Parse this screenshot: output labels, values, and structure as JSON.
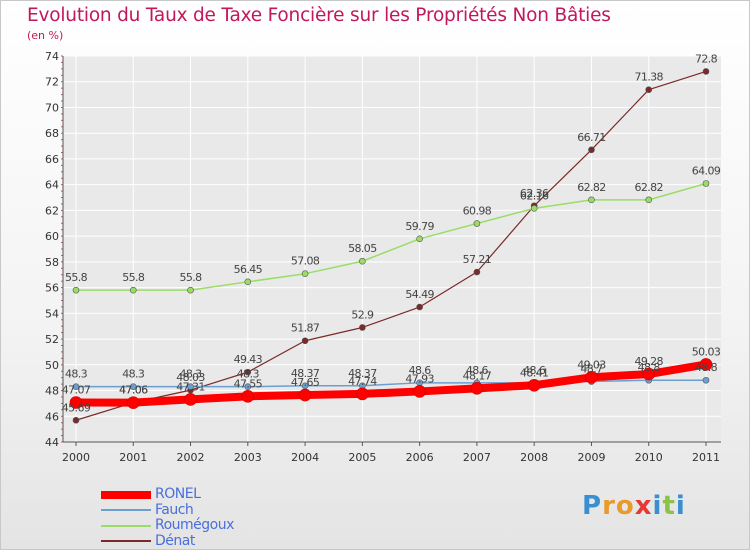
{
  "header": {
    "title": "Evolution du Taux de Taxe Foncière sur les Propriétés Non Bâties",
    "unit": "(en %)"
  },
  "colors": {
    "title": "#c2185b",
    "grid": "#ffffff",
    "axis": "#555555",
    "legend_text": "#4a6fd9"
  },
  "logo": {
    "letters": [
      "P",
      "r",
      "o",
      "x",
      "i",
      "t",
      "i"
    ],
    "colors": [
      "#3a8fd0",
      "#e89a2a",
      "#e89a2a",
      "#e53935",
      "#3a8fd0",
      "#8bc34a",
      "#3a8fd0"
    ]
  },
  "chart_data": {
    "type": "line",
    "x": [
      "2000",
      "2001",
      "2002",
      "2003",
      "2004",
      "2005",
      "2006",
      "2007",
      "2008",
      "2009",
      "2010",
      "2011"
    ],
    "ylim": [
      44,
      74
    ],
    "yticks": [
      44,
      46,
      48,
      50,
      52,
      54,
      56,
      58,
      60,
      62,
      64,
      66,
      68,
      70,
      72,
      74
    ],
    "grid": true,
    "legend_position": "bottom-left",
    "series": [
      {
        "name": "RONEL",
        "color": "#ff0000",
        "width": 8,
        "marker_r": 6,
        "values": [
          47.07,
          47.06,
          47.31,
          47.55,
          47.65,
          47.74,
          47.93,
          48.17,
          48.41,
          49.03,
          49.28,
          50.03
        ],
        "labels": [
          "47.07",
          "47.06",
          "47.31",
          "47.55",
          "47.65",
          "47.74",
          "47.93",
          "48.17",
          "48.41",
          "49.03",
          "49.28",
          "50.03"
        ]
      },
      {
        "name": "Fauch",
        "color": "#6a9fd0",
        "width": 1.5,
        "marker_r": 3,
        "values": [
          48.3,
          48.3,
          48.3,
          48.3,
          48.37,
          48.37,
          48.6,
          48.6,
          48.6,
          48.7,
          48.8,
          48.8
        ],
        "labels": [
          "48.3",
          "48.3",
          "48.3",
          "48.3",
          "48.37",
          "48.37",
          "48.6",
          "48.6",
          "48.6",
          "48.7",
          "48.8",
          "48.8"
        ]
      },
      {
        "name": "Roumégoux",
        "color": "#99dd66",
        "width": 1.5,
        "marker_r": 3,
        "values": [
          55.8,
          55.8,
          55.8,
          56.45,
          57.08,
          58.05,
          59.79,
          60.98,
          62.16,
          62.82,
          62.82,
          64.09
        ],
        "labels": [
          "55.8",
          "55.8",
          "55.8",
          "56.45",
          "57.08",
          "58.05",
          "59.79",
          "60.98",
          "62.16",
          "62.82",
          "62.82",
          "64.09"
        ]
      },
      {
        "name": "Dénat",
        "color": "#7a2a2a",
        "width": 1.2,
        "marker_r": 3,
        "values": [
          45.69,
          47.06,
          48.03,
          49.43,
          51.87,
          52.9,
          54.49,
          57.21,
          62.36,
          66.71,
          71.38,
          72.8
        ],
        "labels": [
          "45.69",
          "47.06",
          "48.03",
          "49.43",
          "51.87",
          "52.9",
          "54.49",
          "57.21",
          "62.36",
          "66.71",
          "71.38",
          "72.8"
        ]
      }
    ]
  }
}
